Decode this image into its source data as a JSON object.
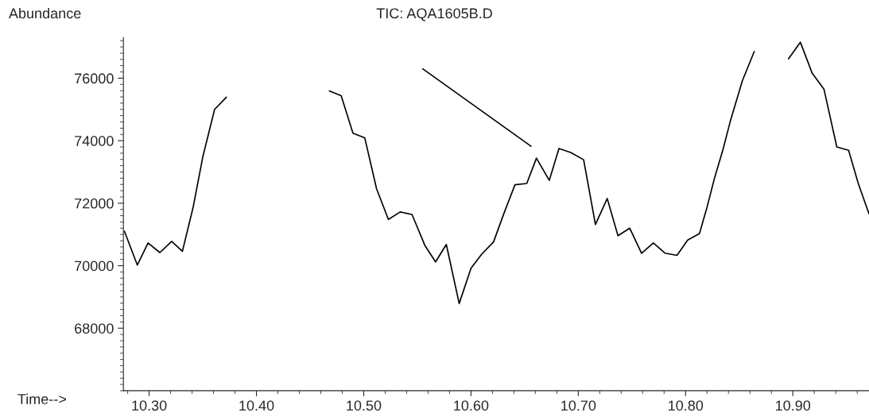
{
  "chart_data": {
    "type": "line",
    "title": "TIC: AQA1605B.D",
    "xlabel": "Time-->",
    "ylabel": "Abundance",
    "xlim": [
      10.276,
      10.971
    ],
    "ylim": [
      66000,
      77300
    ],
    "xticks": [
      {
        "value": 10.3,
        "label": "10.30"
      },
      {
        "value": 10.4,
        "label": "10.40"
      },
      {
        "value": 10.5,
        "label": "10.50"
      },
      {
        "value": 10.6,
        "label": "10.60"
      },
      {
        "value": 10.7,
        "label": "10.70"
      },
      {
        "value": 10.8,
        "label": "10.80"
      },
      {
        "value": 10.9,
        "label": "10.90"
      }
    ],
    "yticks": [
      68000,
      70000,
      72000,
      74000,
      76000
    ],
    "grid": false,
    "legend": false,
    "series": [
      {
        "color": "#000000",
        "x": [
          10.277,
          10.289,
          10.299,
          10.31,
          10.321,
          10.331,
          10.341,
          10.35,
          10.361,
          10.372,
          10.376,
          10.42,
          10.461,
          10.468,
          10.479,
          10.49,
          10.501,
          10.512,
          10.523,
          10.534,
          10.545,
          10.557,
          10.567,
          10.577,
          10.589,
          10.6,
          10.61,
          10.621,
          10.631,
          10.641,
          10.652,
          10.661,
          10.673,
          10.682,
          10.693,
          10.705,
          10.716,
          10.727,
          10.737,
          10.748,
          10.759,
          10.77,
          10.781,
          10.792,
          10.802,
          10.813,
          10.82,
          10.827,
          10.835,
          10.842,
          10.853,
          10.864,
          10.867,
          10.88,
          10.892,
          10.896,
          10.907,
          10.918,
          10.929,
          10.941,
          10.952,
          10.961,
          10.971
        ],
        "values": [
          71100,
          70020,
          70730,
          70420,
          70780,
          70460,
          71870,
          73480,
          75000,
          75390,
          null,
          null,
          null,
          75590,
          75440,
          74240,
          74090,
          72460,
          71480,
          71720,
          71640,
          70650,
          70120,
          70680,
          68790,
          69920,
          70370,
          70760,
          71700,
          72590,
          72630,
          73440,
          72730,
          73750,
          73620,
          73390,
          71320,
          72150,
          70960,
          71200,
          70400,
          70730,
          70400,
          70330,
          70820,
          71030,
          71870,
          72800,
          73730,
          74660,
          75920,
          76850,
          null,
          null,
          null,
          76620,
          77150,
          76160,
          75650,
          73800,
          73690,
          72630,
          71660
        ]
      },
      {
        "color": "#000000",
        "x": [
          10.555,
          10.656
        ],
        "values": [
          76300,
          73820
        ]
      }
    ]
  }
}
